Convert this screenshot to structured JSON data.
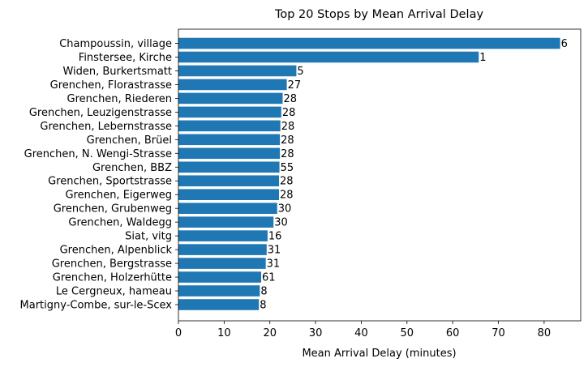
{
  "chart_data": {
    "type": "bar",
    "orientation": "horizontal",
    "title": "Top 20 Stops by Mean Arrival Delay",
    "xlabel": "Mean Arrival Delay (minutes)",
    "ylabel": "",
    "xlim": [
      0,
      88
    ],
    "xticks": [
      0,
      10,
      20,
      30,
      40,
      50,
      60,
      70,
      80
    ],
    "grid": false,
    "bar_color": "#1f77b4",
    "categories": [
      "Champoussin, village",
      "Finstersee, Kirche",
      "Widen, Burkertsmatt",
      "Grenchen, Florastrasse",
      "Grenchen, Riederen",
      "Grenchen, Leuzigenstrasse",
      "Grenchen, Lebernstrasse",
      "Grenchen, Brüel",
      "Grenchen, N. Wengi-Strasse",
      "Grenchen, BBZ",
      "Grenchen, Sportstrasse",
      "Grenchen, Eigerweg",
      "Grenchen, Grubenweg",
      "Grenchen, Waldegg",
      "Siat, vitg",
      "Grenchen, Alpenblick",
      "Grenchen, Bergstrasse",
      "Grenchen, Holzerhütte",
      "Le Cergneux, hameau",
      "Martigny-Combe, sur-le-Scex"
    ],
    "values": [
      83.5,
      65.7,
      25.8,
      23.7,
      22.8,
      22.5,
      22.3,
      22.2,
      22.2,
      22.1,
      22.0,
      22.0,
      21.6,
      20.8,
      19.5,
      19.3,
      19.1,
      18.1,
      17.8,
      17.6
    ],
    "bar_labels": [
      "6",
      "1",
      "5",
      "27",
      "28",
      "28",
      "28",
      "28",
      "28",
      "55",
      "28",
      "28",
      "30",
      "30",
      "16",
      "31",
      "31",
      "61",
      "8",
      "8"
    ]
  }
}
